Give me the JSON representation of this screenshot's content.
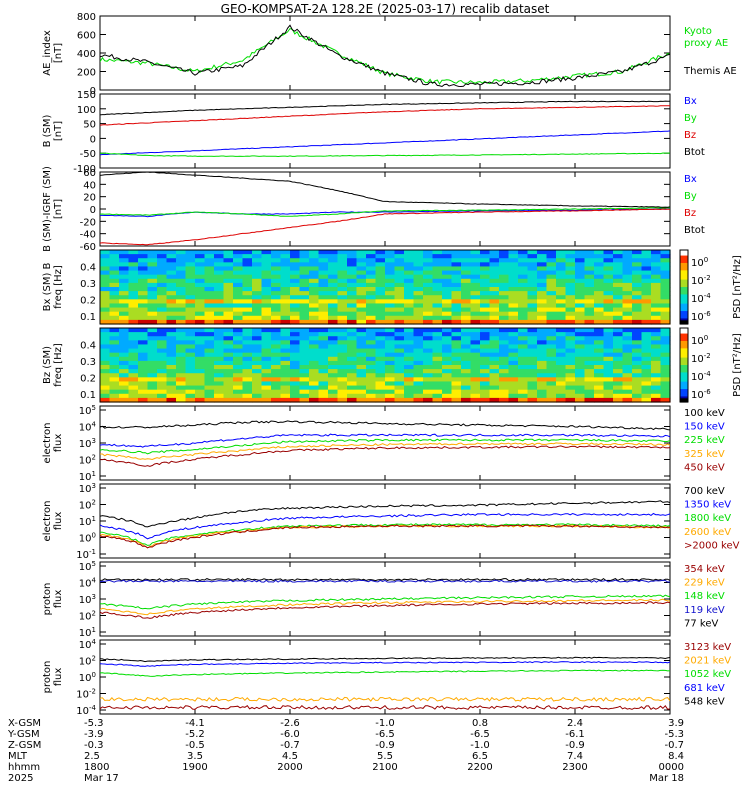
{
  "title": "GEO-KOMPSAT-2A 128.2E (2025-03-17) recalib dataset",
  "colors": {
    "black": "#000000",
    "green": "#00dd00",
    "blue": "#0000ff",
    "red": "#dd0000",
    "orange": "#ffaa00",
    "darkred": "#990000",
    "lime": "#22cc22",
    "navy": "#1111cc"
  },
  "chart_data": [
    {
      "type": "line",
      "ylabel": "AE_index\n[nT]",
      "ylim": [
        0,
        800
      ],
      "yticks": [
        "800",
        "600",
        "400",
        "200",
        "0"
      ],
      "legend": [
        {
          "name": "Kyoto proxy AE",
          "color": "green"
        },
        {
          "name": "Themis AE",
          "color": "black"
        }
      ],
      "series": [
        {
          "name": "Kyoto proxy AE",
          "color": "green",
          "x": [
            18,
            18.5,
            19,
            19.5,
            20,
            20.5,
            21,
            21.5,
            22,
            22.5,
            23,
            23.5,
            24
          ],
          "values": [
            330,
            290,
            200,
            320,
            650,
            400,
            180,
            90,
            80,
            100,
            150,
            200,
            400
          ]
        },
        {
          "name": "Themis AE",
          "color": "black",
          "x": [
            18,
            18.5,
            19,
            19.5,
            20,
            20.5,
            21,
            21.5,
            22,
            22.5,
            23,
            23.5,
            24
          ],
          "values": [
            380,
            300,
            180,
            260,
            680,
            380,
            180,
            60,
            60,
            80,
            130,
            200,
            370
          ]
        }
      ]
    },
    {
      "type": "line",
      "ylabel": "B (SM)\n[nT]",
      "ylim": [
        -100,
        150
      ],
      "yticks": [
        "150",
        "100",
        "50",
        "0",
        "-50",
        "-100"
      ],
      "legend": [
        {
          "name": "Bx",
          "color": "blue"
        },
        {
          "name": "By",
          "color": "green"
        },
        {
          "name": "Bz",
          "color": "red"
        },
        {
          "name": "Btot",
          "color": "black"
        }
      ],
      "series": [
        {
          "name": "Bx",
          "color": "blue",
          "x": [
            18,
            24
          ],
          "values": [
            -55,
            25
          ]
        },
        {
          "name": "By",
          "color": "green",
          "x": [
            18,
            18.5,
            19,
            20,
            21,
            22,
            24
          ],
          "values": [
            -50,
            -58,
            -60,
            -60,
            -58,
            -56,
            -50
          ]
        },
        {
          "name": "Bz",
          "color": "red",
          "x": [
            18,
            19,
            20,
            21,
            22,
            23,
            24
          ],
          "values": [
            45,
            60,
            75,
            90,
            100,
            105,
            110
          ]
        },
        {
          "name": "Btot",
          "color": "black",
          "x": [
            18,
            19,
            20,
            21,
            22,
            23,
            24
          ],
          "values": [
            80,
            95,
            105,
            115,
            120,
            125,
            125
          ]
        }
      ]
    },
    {
      "type": "line",
      "ylabel": "B (SM)-IGRF (SM)\n[nT]",
      "ylim": [
        -60,
        60
      ],
      "yticks": [
        "60",
        "40",
        "20",
        "0",
        "-20",
        "-40",
        "-60"
      ],
      "legend": [
        {
          "name": "Bx",
          "color": "blue"
        },
        {
          "name": "By",
          "color": "green"
        },
        {
          "name": "Bz",
          "color": "red"
        },
        {
          "name": "Btot",
          "color": "black"
        }
      ],
      "series": [
        {
          "name": "Bx",
          "color": "blue",
          "x": [
            18,
            18.5,
            19,
            19.5,
            20,
            20.5,
            21,
            22,
            23,
            24
          ],
          "values": [
            -10,
            -12,
            -5,
            -8,
            -8,
            -5,
            -5,
            -3,
            -2,
            0
          ]
        },
        {
          "name": "By",
          "color": "green",
          "x": [
            18,
            18.5,
            19,
            19.5,
            20,
            20.5,
            21,
            22,
            23,
            24
          ],
          "values": [
            -8,
            -10,
            -5,
            -8,
            -12,
            -8,
            -3,
            -2,
            0,
            2
          ]
        },
        {
          "name": "Bz",
          "color": "red",
          "x": [
            18,
            18.5,
            19,
            19.5,
            20,
            20.5,
            21,
            22,
            23,
            24
          ],
          "values": [
            -55,
            -58,
            -50,
            -40,
            -30,
            -20,
            -8,
            -5,
            -3,
            0
          ]
        },
        {
          "name": "Btot",
          "color": "black",
          "x": [
            18,
            18.5,
            19,
            19.5,
            20,
            20.5,
            21,
            22,
            23,
            24
          ],
          "values": [
            55,
            60,
            55,
            50,
            45,
            30,
            12,
            8,
            5,
            3
          ]
        }
      ]
    },
    {
      "type": "heatmap",
      "ylabel": "Bx (SM)  B\nfreq [Hz]",
      "ylim": [
        0.05,
        0.5
      ],
      "yticks": [
        "0.4",
        "0.3",
        "0.2",
        "0.1"
      ],
      "colorbar": {
        "label": "PSD [nT^2/Hz]",
        "ticks": [
          "10^0",
          "10^-2",
          "10^-4",
          "10^-6"
        ]
      }
    },
    {
      "type": "heatmap",
      "ylabel": "Bz (SM)\nfreq [Hz]",
      "ylim": [
        0.05,
        0.5
      ],
      "yticks": [
        "0.4",
        "0.3",
        "0.2",
        "0.1"
      ],
      "colorbar": {
        "label": "PSD [nT^2/Hz]",
        "ticks": [
          "10^0",
          "10^-2",
          "10^-4",
          "10^-6"
        ]
      }
    },
    {
      "type": "line",
      "ylabel": "electron\nflux",
      "yscale": "log",
      "yticks": [
        "10^5",
        "10^4",
        "10^3",
        "10^2",
        "10^1"
      ],
      "legend": [
        {
          "name": "100 keV",
          "color": "black"
        },
        {
          "name": "150 keV",
          "color": "blue"
        },
        {
          "name": "225 keV",
          "color": "green"
        },
        {
          "name": "325 keV",
          "color": "orange"
        },
        {
          "name": "450 keV",
          "color": "darkred"
        }
      ],
      "series": [
        {
          "name": "100 keV",
          "color": "black",
          "x": [
            18,
            18.5,
            19,
            19.5,
            20,
            21,
            22,
            23,
            24
          ],
          "values": [
            9000,
            9000,
            12000,
            18000,
            20000,
            15000,
            12000,
            10000,
            7000
          ]
        },
        {
          "name": "150 keV",
          "color": "blue",
          "x": [
            18,
            18.5,
            19,
            19.5,
            20,
            21,
            22,
            23,
            24
          ],
          "values": [
            800,
            600,
            1000,
            1800,
            3000,
            3000,
            3000,
            3000,
            2500
          ]
        },
        {
          "name": "225 keV",
          "color": "green",
          "x": [
            18,
            18.5,
            19,
            19.5,
            20,
            21,
            22,
            23,
            24
          ],
          "values": [
            400,
            250,
            400,
            700,
            1200,
            1500,
            1500,
            1500,
            1300
          ]
        },
        {
          "name": "325 keV",
          "color": "orange",
          "x": [
            18,
            18.5,
            19,
            19.5,
            20,
            21,
            22,
            23,
            24
          ],
          "values": [
            200,
            100,
            200,
            350,
            600,
            800,
            900,
            900,
            800
          ]
        },
        {
          "name": "450 keV",
          "color": "darkred",
          "x": [
            18,
            18.5,
            19,
            19.5,
            20,
            21,
            22,
            23,
            24
          ],
          "values": [
            100,
            40,
            100,
            200,
            350,
            500,
            550,
            600,
            550
          ]
        }
      ]
    },
    {
      "type": "line",
      "ylabel": "electron\nflux",
      "yscale": "log",
      "yticks": [
        "10^3",
        "10^2",
        "10^1",
        "10^0",
        "10^-1"
      ],
      "legend": [
        {
          "name": "700 keV",
          "color": "black"
        },
        {
          "name": "1350 keV",
          "color": "blue"
        },
        {
          "name": "1800 keV",
          "color": "green"
        },
        {
          "name": "2600 keV",
          "color": "orange"
        },
        {
          "name": ">2000 keV",
          "color": "darkred"
        }
      ],
      "series": [
        {
          "name": "700 keV",
          "color": "black",
          "x": [
            18,
            18.5,
            19,
            19.5,
            20,
            21,
            22,
            23,
            24
          ],
          "values": [
            20,
            4,
            15,
            40,
            60,
            80,
            90,
            120,
            150
          ]
        },
        {
          "name": "1350 keV",
          "color": "blue",
          "x": [
            18,
            18.5,
            19,
            19.5,
            20,
            21,
            22,
            23,
            24
          ],
          "values": [
            5,
            0.8,
            4,
            8,
            15,
            20,
            25,
            25,
            25
          ]
        },
        {
          "name": "1800 keV",
          "color": "green",
          "x": [
            18,
            18.5,
            19,
            19.5,
            20,
            21,
            22,
            23,
            24
          ],
          "values": [
            2,
            0.3,
            1.5,
            3,
            5,
            6,
            6,
            6,
            5
          ]
        },
        {
          "name": "2600 keV",
          "color": "orange",
          "x": [
            18,
            18.5,
            19,
            19.5,
            20,
            21,
            22,
            23,
            24
          ],
          "values": [
            1.5,
            0.25,
            1.2,
            2.5,
            4,
            5,
            5,
            5,
            4
          ]
        },
        {
          "name": ">2000 keV",
          "color": "darkred",
          "x": [
            18,
            18.5,
            19,
            19.5,
            20,
            21,
            22,
            23,
            24
          ],
          "values": [
            1.3,
            0.22,
            1,
            2.2,
            4,
            5,
            5,
            5,
            4
          ]
        }
      ]
    },
    {
      "type": "line",
      "ylabel": "proton\nflux",
      "yscale": "log",
      "yticks": [
        "10^5",
        "10^4",
        "10^3",
        "10^2",
        "10^1"
      ],
      "legend": [
        {
          "name": "354 keV",
          "color": "darkred"
        },
        {
          "name": "229 keV",
          "color": "orange"
        },
        {
          "name": "148 keV",
          "color": "green"
        },
        {
          "name": "119 keV",
          "color": "navy"
        },
        {
          "name": "77 keV",
          "color": "black"
        }
      ],
      "series": [
        {
          "name": "77 keV",
          "color": "black",
          "x": [
            18,
            24
          ],
          "values": [
            15000,
            15000
          ]
        },
        {
          "name": "119 keV",
          "color": "navy",
          "x": [
            18,
            24
          ],
          "values": [
            12000,
            12000
          ]
        },
        {
          "name": "148 keV",
          "color": "green",
          "x": [
            18,
            18.5,
            19,
            20,
            21,
            22,
            23,
            24
          ],
          "values": [
            500,
            250,
            500,
            800,
            1000,
            1200,
            1400,
            1500
          ]
        },
        {
          "name": "229 keV",
          "color": "orange",
          "x": [
            18,
            18.5,
            19,
            20,
            21,
            22,
            23,
            24
          ],
          "values": [
            250,
            120,
            250,
            450,
            600,
            700,
            800,
            850
          ]
        },
        {
          "name": "354 keV",
          "color": "darkred",
          "x": [
            18,
            18.5,
            19,
            20,
            21,
            22,
            23,
            24
          ],
          "values": [
            150,
            70,
            150,
            300,
            400,
            500,
            550,
            600
          ]
        }
      ]
    },
    {
      "type": "line",
      "ylabel": "proton\nflux",
      "yscale": "log",
      "yticks": [
        "10^4",
        "10^2",
        "10^0",
        "10^-2",
        "10^-4"
      ],
      "legend": [
        {
          "name": "3123 keV",
          "color": "darkred"
        },
        {
          "name": "2021 keV",
          "color": "orange"
        },
        {
          "name": "1052 keV",
          "color": "green"
        },
        {
          "name": "681 keV",
          "color": "blue"
        },
        {
          "name": "548 keV",
          "color": "black"
        }
      ],
      "series": [
        {
          "name": "548 keV",
          "color": "black",
          "x": [
            18,
            18.5,
            19,
            20,
            21,
            22,
            23,
            24
          ],
          "values": [
            150,
            80,
            120,
            150,
            180,
            200,
            220,
            200
          ]
        },
        {
          "name": "681 keV",
          "color": "blue",
          "x": [
            18,
            18.5,
            19,
            20,
            21,
            22,
            23,
            24
          ],
          "values": [
            40,
            20,
            35,
            45,
            55,
            60,
            65,
            60
          ]
        },
        {
          "name": "1052 keV",
          "color": "green",
          "x": [
            18,
            18.5,
            19,
            20,
            21,
            22,
            23,
            24
          ],
          "values": [
            3,
            1.2,
            2,
            3,
            4,
            5,
            6,
            6
          ]
        },
        {
          "name": "2021 keV",
          "color": "orange",
          "x": [
            18,
            24
          ],
          "values": [
            0.002,
            0.002
          ]
        },
        {
          "name": "3123 keV",
          "color": "darkred",
          "x": [
            18,
            24
          ],
          "values": [
            0.0002,
            0.0002
          ]
        }
      ]
    }
  ],
  "orbit": {
    "rows": [
      "X-GSM",
      "Y-GSM",
      "Z-GSM",
      "MLT",
      "hhmm",
      "2025"
    ],
    "columns": [
      [
        "-5.3",
        "-3.9",
        "-0.3",
        "2.5",
        "1800",
        "Mar 17"
      ],
      [
        "-4.1",
        "-5.2",
        "-0.5",
        "3.5",
        "1900",
        ""
      ],
      [
        "-2.6",
        "-6.0",
        "-0.7",
        "4.5",
        "2000",
        ""
      ],
      [
        "-1.0",
        "-6.5",
        "-0.9",
        "5.5",
        "2100",
        ""
      ],
      [
        "0.8",
        "-6.5",
        "-1.0",
        "6.5",
        "2200",
        ""
      ],
      [
        "2.4",
        "-6.1",
        "-0.9",
        "7.4",
        "2300",
        ""
      ],
      [
        "3.9",
        "-5.3",
        "-0.7",
        "8.4",
        "0000",
        "Mar 18"
      ]
    ]
  }
}
